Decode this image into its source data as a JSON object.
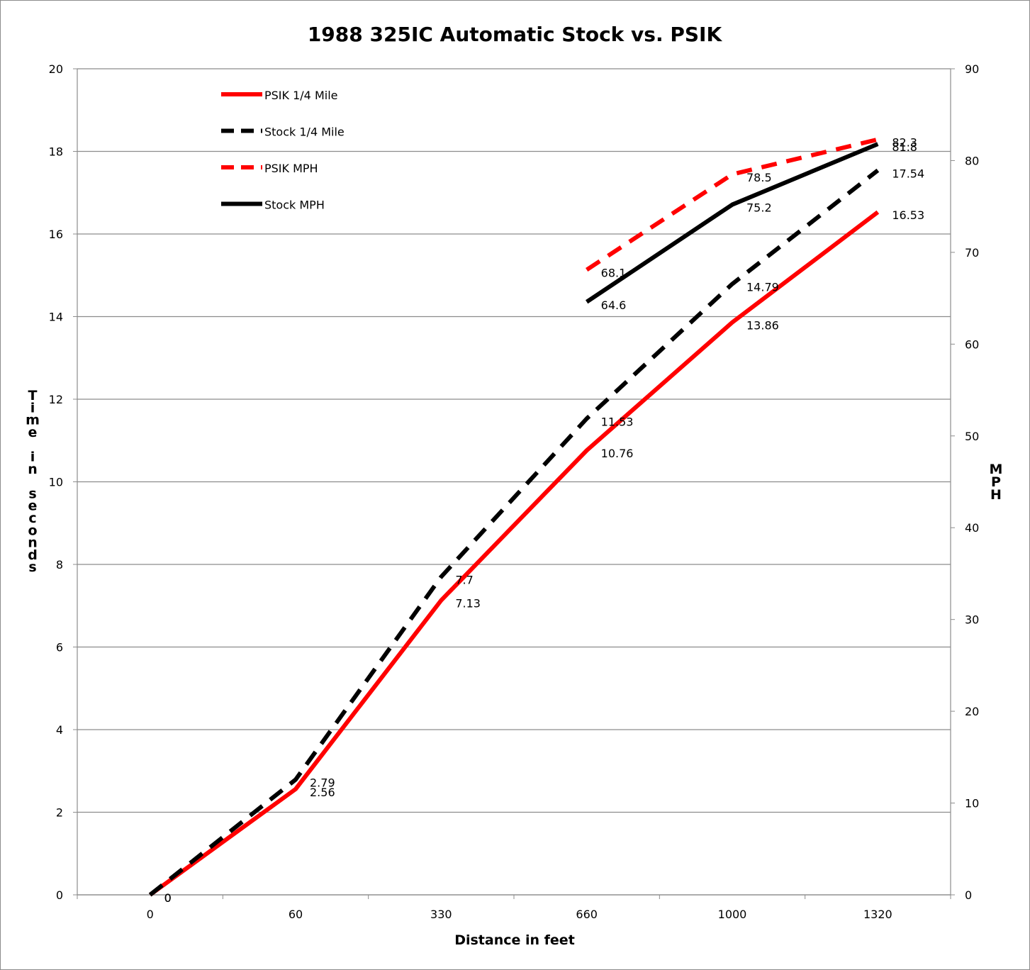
{
  "chart_data": {
    "type": "line",
    "title": "1988 325IC Automatic Stock vs. PSIK",
    "xlabel": "Distance in feet",
    "ylabel": "Time in seconds",
    "y2label": "MPH",
    "categories": [
      "0",
      "60",
      "330",
      "660",
      "1000",
      "1320"
    ],
    "ylim": [
      0,
      20
    ],
    "y_ticks": [
      "0",
      "2",
      "4",
      "6",
      "8",
      "10",
      "12",
      "14",
      "16",
      "18",
      "20"
    ],
    "y2lim": [
      0,
      90
    ],
    "y2_ticks": [
      "0",
      "10",
      "20",
      "30",
      "40",
      "50",
      "60",
      "70",
      "80",
      "90"
    ],
    "grid": true,
    "legend_position": "top-left",
    "series": [
      {
        "name": "PSIK 1/4 Mile",
        "axis": "left",
        "color": "#ff0000",
        "style": "solid",
        "values": [
          0,
          2.56,
          7.13,
          10.76,
          13.86,
          16.53
        ],
        "labels": [
          "0",
          "2.56",
          "7.13",
          "10.76",
          "13.86",
          "16.53"
        ]
      },
      {
        "name": "Stock 1/4 Mile",
        "axis": "left",
        "color": "#000000",
        "style": "dashed",
        "values": [
          0,
          2.79,
          7.7,
          11.53,
          14.79,
          17.54
        ],
        "labels": [
          "0",
          "2.79",
          "7.7",
          "11.53",
          "14.79",
          "17.54"
        ]
      },
      {
        "name": "PSIK MPH",
        "axis": "right",
        "color": "#ff0000",
        "style": "dashed",
        "values": [
          null,
          null,
          null,
          68.1,
          78.5,
          82.3
        ],
        "labels": [
          null,
          null,
          null,
          "68.1",
          "78.5",
          "82.3"
        ]
      },
      {
        "name": "Stock MPH",
        "axis": "right",
        "color": "#000000",
        "style": "solid",
        "values": [
          null,
          null,
          null,
          64.6,
          75.2,
          81.8
        ],
        "labels": [
          null,
          null,
          null,
          "64.6",
          "75.2",
          "81.8"
        ]
      }
    ]
  }
}
